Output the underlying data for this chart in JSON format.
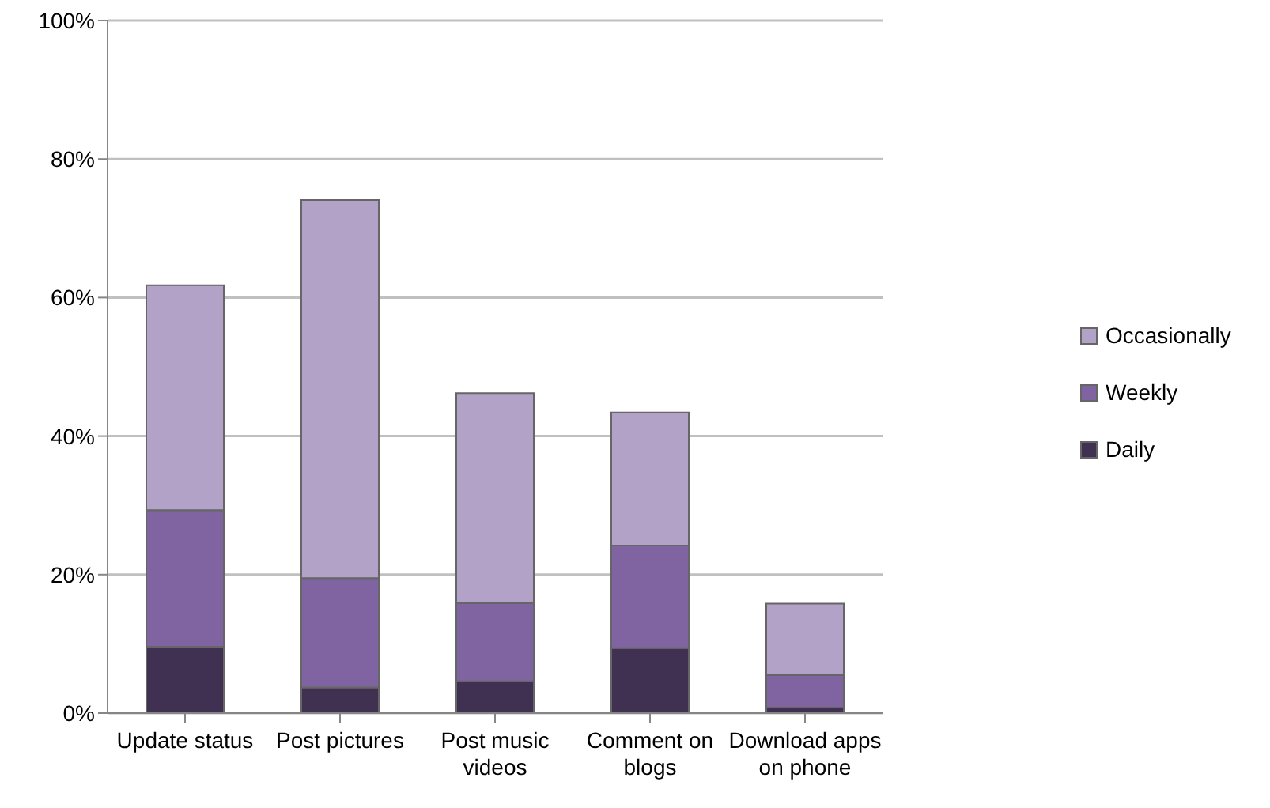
{
  "chart_data": {
    "type": "bar",
    "stacked": true,
    "categories": [
      "Update status",
      "Post pictures",
      "Post music videos",
      "Comment on blogs",
      "Download apps on phone"
    ],
    "series": [
      {
        "name": "Daily",
        "color": "#403152",
        "values": [
          9.6,
          3.7,
          4.6,
          9.4,
          0.8
        ]
      },
      {
        "name": "Weekly",
        "color": "#8064a2",
        "values": [
          19.7,
          15.8,
          11.3,
          14.8,
          4.7
        ]
      },
      {
        "name": "Occasionally",
        "color": "#b3a2c7",
        "values": [
          32.5,
          54.6,
          30.3,
          19.2,
          10.3
        ]
      }
    ],
    "ylim": [
      0,
      100
    ],
    "yticks": [
      {
        "value": 0,
        "label": "0%"
      },
      {
        "value": 20,
        "label": "20%"
      },
      {
        "value": 40,
        "label": "40%"
      },
      {
        "value": 60,
        "label": "60%"
      },
      {
        "value": 80,
        "label": "80%"
      },
      {
        "value": 100,
        "label": "100%"
      }
    ],
    "grid": "y",
    "legend": "right"
  }
}
